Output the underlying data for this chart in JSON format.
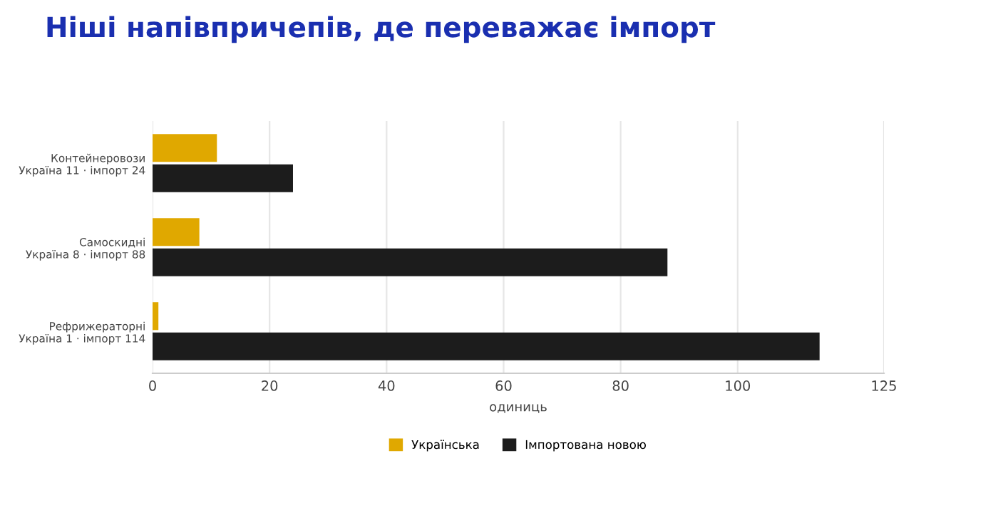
{
  "chart_data": {
    "type": "bar",
    "orientation": "horizontal",
    "title": "Ніші напівпричепів, де переважає імпорт",
    "categories": [
      "Контейнеровози\nУкраїна 11 · імпорт 24",
      "Самоскидні\nУкраїна 8 · імпорт 88",
      "Рефрижераторні\nУкраїна 1 · імпорт 114"
    ],
    "series": [
      {
        "name": "Українська",
        "color": "#e0a800",
        "values": [
          11,
          8,
          1
        ]
      },
      {
        "name": "Імпортована новою",
        "color": "#1c1c1c",
        "values": [
          24,
          88,
          114
        ]
      }
    ],
    "xlabel": "одиниць",
    "xlim": [
      0,
      125
    ],
    "xticks": [
      0,
      20,
      40,
      60,
      80,
      100,
      125
    ],
    "grid": "x",
    "legend": "bottom"
  }
}
